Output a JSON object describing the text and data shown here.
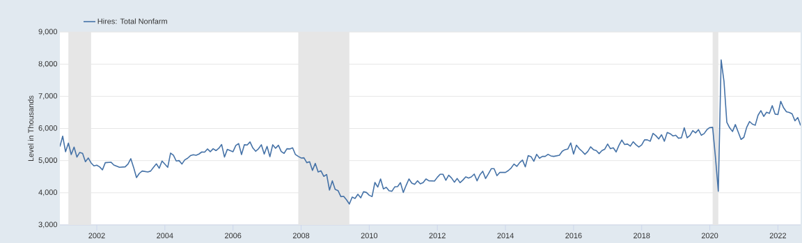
{
  "chart_data": {
    "type": "line",
    "ylabel": "Level in Thousands",
    "legend": "top left",
    "grid": "y",
    "marker": "none",
    "line_style": "solid",
    "xlim": [
      "2000-12",
      "2022-09"
    ],
    "xticks": [
      "2002",
      "2004",
      "2006",
      "2008",
      "2010",
      "2012",
      "2014",
      "2016",
      "2018",
      "2020",
      "2022"
    ],
    "ylim": [
      3000,
      9000
    ],
    "yticks": [
      {
        "value": 3000,
        "label": "3,000"
      },
      {
        "value": 4000,
        "label": "4,000"
      },
      {
        "value": 5000,
        "label": "5,000"
      },
      {
        "value": 6000,
        "label": "6,000"
      },
      {
        "value": 7000,
        "label": "7,000"
      },
      {
        "value": 8000,
        "label": "8,000"
      },
      {
        "value": 9000,
        "label": "9,000"
      }
    ],
    "bands": [
      {
        "axis": "x",
        "from": "2001-03",
        "to": "2001-11",
        "color": "#e6e6e6"
      },
      {
        "axis": "x",
        "from": "2007-12",
        "to": "2009-06",
        "color": "#e6e6e6"
      },
      {
        "axis": "x",
        "from": "2020-02",
        "to": "2020-04",
        "color": "#e6e6e6"
      }
    ],
    "series": [
      {
        "name": "Hires: Total Nonfarm",
        "color": "#4572a7",
        "x": [
          "2000-12",
          "2001-01",
          "2001-02",
          "2001-03",
          "2001-04",
          "2001-05",
          "2001-06",
          "2001-07",
          "2001-08",
          "2001-09",
          "2001-10",
          "2001-11",
          "2001-12",
          "2002-01",
          "2002-02",
          "2002-03",
          "2002-04",
          "2002-06",
          "2002-07",
          "2002-09",
          "2002-11",
          "2002-12",
          "2003-01",
          "2003-02",
          "2003-03",
          "2003-04",
          "2003-05",
          "2003-07",
          "2003-08",
          "2003-09",
          "2003-10",
          "2003-11",
          "2003-12",
          "2004-02",
          "2004-03",
          "2004-04",
          "2004-05",
          "2004-06",
          "2004-07",
          "2004-08",
          "2004-09",
          "2004-10",
          "2004-11",
          "2004-12",
          "2005-01",
          "2005-02",
          "2005-03",
          "2005-04",
          "2005-05",
          "2005-06",
          "2005-07",
          "2005-08",
          "2005-09",
          "2005-10",
          "2005-11",
          "2005-12",
          "2006-01",
          "2006-02",
          "2006-03",
          "2006-04",
          "2006-05",
          "2006-06",
          "2006-07",
          "2006-08",
          "2006-09",
          "2006-10",
          "2006-11",
          "2006-12",
          "2007-01",
          "2007-02",
          "2007-03",
          "2007-04",
          "2007-05",
          "2007-06",
          "2007-07",
          "2007-08",
          "2007-09",
          "2007-10",
          "2007-11",
          "2007-12",
          "2008-01",
          "2008-02",
          "2008-03",
          "2008-04",
          "2008-05",
          "2008-06",
          "2008-07",
          "2008-08",
          "2008-09",
          "2008-10",
          "2008-11",
          "2008-12",
          "2009-01",
          "2009-02",
          "2009-03",
          "2009-04",
          "2009-05",
          "2009-06",
          "2009-07",
          "2009-08",
          "2009-09",
          "2009-10",
          "2009-11",
          "2009-12",
          "2010-01",
          "2010-02",
          "2010-03",
          "2010-04",
          "2010-05",
          "2010-06",
          "2010-07",
          "2010-08",
          "2010-09",
          "2010-10",
          "2010-11",
          "2010-12",
          "2011-01",
          "2011-02",
          "2011-03",
          "2011-04",
          "2011-05",
          "2011-06",
          "2011-07",
          "2011-08",
          "2011-09",
          "2011-10",
          "2011-12",
          "2012-01",
          "2012-02",
          "2012-03",
          "2012-04",
          "2012-05",
          "2012-06",
          "2012-07",
          "2012-08",
          "2012-09",
          "2012-10",
          "2012-11",
          "2012-12",
          "2013-01",
          "2013-02",
          "2013-03",
          "2013-04",
          "2013-05",
          "2013-06",
          "2013-07",
          "2013-08",
          "2013-09",
          "2013-10",
          "2013-11",
          "2014-01",
          "2014-02",
          "2014-03",
          "2014-04",
          "2014-05",
          "2014-06",
          "2014-07",
          "2014-08",
          "2014-09",
          "2014-10",
          "2014-11",
          "2014-12",
          "2015-01",
          "2015-02",
          "2015-03",
          "2015-04",
          "2015-05",
          "2015-06",
          "2015-08",
          "2015-09",
          "2015-10",
          "2015-11",
          "2015-12",
          "2016-01",
          "2016-02",
          "2016-03",
          "2016-04",
          "2016-05",
          "2016-06",
          "2016-07",
          "2016-08",
          "2016-09",
          "2016-10",
          "2016-11",
          "2016-12",
          "2017-01",
          "2017-02",
          "2017-03",
          "2017-04",
          "2017-05",
          "2017-06",
          "2017-07",
          "2017-08",
          "2017-09",
          "2017-10",
          "2017-11",
          "2017-12",
          "2018-01",
          "2018-02",
          "2018-03",
          "2018-04",
          "2018-05",
          "2018-06",
          "2018-07",
          "2018-08",
          "2018-09",
          "2018-10",
          "2018-11",
          "2018-12",
          "2019-01",
          "2019-02",
          "2019-03",
          "2019-04",
          "2019-05",
          "2019-06",
          "2019-07",
          "2019-08",
          "2019-09",
          "2019-10",
          "2019-11",
          "2019-12",
          "2020-01",
          "2020-02",
          "2020-03",
          "2020-04",
          "2020-05",
          "2020-06",
          "2020-07",
          "2020-08",
          "2020-09",
          "2020-10",
          "2020-11",
          "2020-12",
          "2021-01",
          "2021-02",
          "2021-03",
          "2021-04",
          "2021-05",
          "2021-06",
          "2021-07",
          "2021-08",
          "2021-09",
          "2021-10",
          "2021-11",
          "2021-12",
          "2022-01",
          "2022-02",
          "2022-03",
          "2022-04",
          "2022-05",
          "2022-06",
          "2022-07",
          "2022-08",
          "2022-09"
        ],
        "values": [
          5435,
          5760,
          5276,
          5544,
          5189,
          5421,
          5110,
          5254,
          5226,
          4965,
          5081,
          4929,
          4835,
          4857,
          4806,
          4712,
          4936,
          4951,
          4864,
          4791,
          4806,
          4893,
          5059,
          4784,
          4473,
          4603,
          4676,
          4647,
          4676,
          4791,
          4900,
          4763,
          4987,
          4791,
          5233,
          5167,
          4987,
          5001,
          4893,
          5023,
          5074,
          5153,
          5182,
          5167,
          5204,
          5269,
          5262,
          5363,
          5276,
          5370,
          5312,
          5385,
          5500,
          5110,
          5348,
          5312,
          5276,
          5471,
          5529,
          5189,
          5493,
          5486,
          5580,
          5392,
          5290,
          5370,
          5493,
          5204,
          5442,
          5124,
          5493,
          5385,
          5478,
          5283,
          5226,
          5370,
          5363,
          5399,
          5189,
          5131,
          5081,
          5088,
          4936,
          4965,
          4697,
          4914,
          4647,
          4683,
          4510,
          4568,
          4083,
          4372,
          4105,
          4069,
          3880,
          3888,
          3779,
          3649,
          3866,
          3823,
          3953,
          3844,
          4032,
          4010,
          3924,
          3880,
          4322,
          4177,
          4430,
          4119,
          4170,
          4061,
          4047,
          4184,
          4191,
          4314,
          4010,
          4228,
          4430,
          4300,
          4264,
          4372,
          4278,
          4314,
          4430,
          4372,
          4365,
          4481,
          4575,
          4575,
          4387,
          4546,
          4459,
          4329,
          4444,
          4314,
          4394,
          4495,
          4459,
          4495,
          4582,
          4372,
          4560,
          4669,
          4444,
          4589,
          4748,
          4748,
          4531,
          4632,
          4632,
          4690,
          4770,
          4893,
          4820,
          4936,
          5016,
          4806,
          5153,
          5124,
          4980,
          5196,
          5074,
          5131,
          5131,
          5196,
          5146,
          5131,
          5167,
          5290,
          5341,
          5363,
          5551,
          5204,
          5478,
          5370,
          5290,
          5196,
          5283,
          5428,
          5341,
          5312,
          5218,
          5312,
          5356,
          5515,
          5370,
          5399,
          5269,
          5478,
          5638,
          5500,
          5515,
          5450,
          5587,
          5493,
          5421,
          5486,
          5645,
          5645,
          5602,
          5847,
          5775,
          5674,
          5804,
          5602,
          5876,
          5840,
          5768,
          5789,
          5695,
          5710,
          6021,
          5710,
          5782,
          5934,
          5862,
          5963,
          5789,
          5840,
          5963,
          6028,
          6035,
          5095,
          4047,
          8132,
          7467,
          6194,
          6021,
          5905,
          6122,
          5890,
          5659,
          5724,
          6035,
          6216,
          6136,
          6100,
          6411,
          6556,
          6375,
          6505,
          6469,
          6708,
          6447,
          6433,
          6845,
          6643,
          6520,
          6498,
          6455,
          6238,
          6339,
          6093
        ]
      }
    ]
  }
}
